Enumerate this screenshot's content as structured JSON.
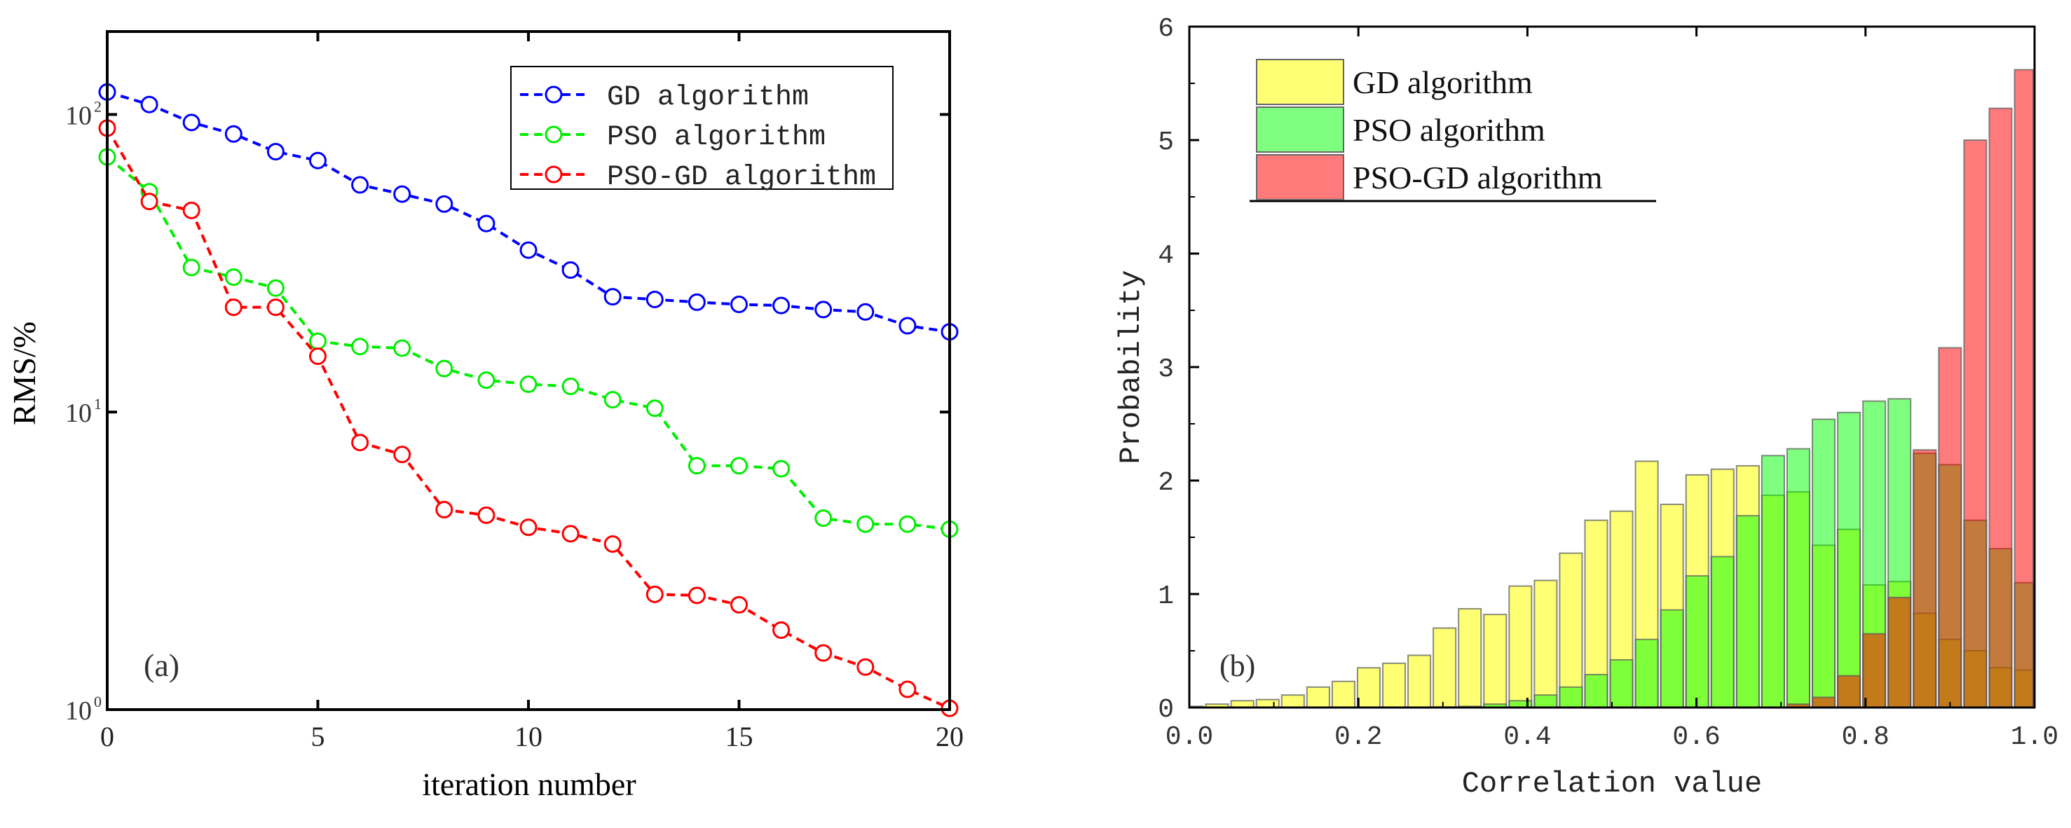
{
  "chart_data": [
    {
      "type": "line",
      "panel_label": "(a)",
      "xlabel": "iteration number",
      "ylabel": "RMS/%",
      "yscale": "log",
      "xlim": [
        0,
        20
      ],
      "ylim": [
        1,
        190
      ],
      "x_ticks": [
        "0",
        "5",
        "10",
        "15",
        "20"
      ],
      "x_tick_values": [
        0,
        5,
        10,
        15,
        20
      ],
      "y_ticks": [
        {
          "base": "10",
          "exp": "0",
          "value": 1
        },
        {
          "base": "10",
          "exp": "1",
          "value": 10
        },
        {
          "base": "10",
          "exp": "2",
          "value": 100
        }
      ],
      "legend_position": "top-right",
      "x": [
        0,
        1,
        2,
        3,
        4,
        5,
        6,
        7,
        8,
        9,
        10,
        11,
        12,
        13,
        14,
        15,
        16,
        17,
        18,
        19,
        20
      ],
      "series": [
        {
          "name": "GD algorithm",
          "color": "#0000ff",
          "values": [
            119,
            108,
            94,
            86,
            75,
            70,
            58,
            54,
            50,
            43,
            35,
            30,
            24.4,
            23.9,
            23.4,
            23,
            22.8,
            22.1,
            21.7,
            19.5,
            18.6
          ]
        },
        {
          "name": "PSO algorithm",
          "color": "#00ee00",
          "values": [
            72,
            55,
            30.6,
            28.4,
            26.1,
            17.3,
            16.6,
            16.4,
            14,
            12.8,
            12.4,
            12.2,
            11,
            10.3,
            6.6,
            6.6,
            6.45,
            4.4,
            4.2,
            4.2,
            4.04
          ]
        },
        {
          "name": "PSO-GD algorithm",
          "color": "#ff0000",
          "values": [
            90,
            51,
            47.6,
            22.5,
            22.5,
            15.4,
            7.9,
            7.2,
            4.7,
            4.5,
            4.1,
            3.9,
            3.6,
            2.44,
            2.42,
            2.25,
            1.85,
            1.55,
            1.39,
            1.17,
            1.01
          ]
        }
      ]
    },
    {
      "type": "bar",
      "subtype": "overlapping-histogram",
      "panel_label": "(b)",
      "xlabel": "Correlation value",
      "ylabel": "Probability",
      "xlim": [
        0,
        1
      ],
      "ylim": [
        0,
        6
      ],
      "x_ticks": [
        "0.0",
        "0.2",
        "0.4",
        "0.6",
        "0.8",
        "1.0"
      ],
      "x_tick_values": [
        0,
        0.2,
        0.4,
        0.6,
        0.8,
        1.0
      ],
      "y_ticks": [
        "0",
        "1",
        "2",
        "3",
        "4",
        "5",
        "6"
      ],
      "y_tick_values": [
        0,
        1,
        2,
        3,
        4,
        5,
        6
      ],
      "legend_position": "top-left",
      "bin_start": -0.012,
      "bin_width": 0.0299,
      "series": [
        {
          "name": "GD algorithm",
          "color": "#ffff00",
          "values": [
            0.01,
            0.03,
            0.06,
            0.07,
            0.11,
            0.18,
            0.23,
            0.35,
            0.39,
            0.46,
            0.7,
            0.87,
            0.82,
            1.07,
            1.12,
            1.36,
            1.65,
            1.73,
            2.17,
            1.79,
            2.05,
            2.1,
            2.13,
            1.87,
            1.9,
            1.43,
            1.57,
            1.08,
            1.11,
            0.83,
            0.6,
            0.5,
            0.35,
            0.33
          ]
        },
        {
          "name": "PSO algorithm",
          "color": "#00ff00",
          "values": [
            0,
            0,
            0,
            0,
            0,
            0,
            0,
            0,
            0,
            0,
            0.005,
            0.01,
            0.03,
            0.06,
            0.11,
            0.18,
            0.29,
            0.42,
            0.6,
            0.86,
            1.16,
            1.33,
            1.69,
            2.22,
            2.28,
            2.54,
            2.6,
            2.7,
            2.72,
            2.24,
            2.14,
            1.65,
            1.4,
            1.1
          ]
        },
        {
          "name": "PSO-GD algorithm",
          "color": "#ff0000",
          "values": [
            0,
            0,
            0,
            0,
            0,
            0,
            0,
            0,
            0,
            0,
            0,
            0,
            0,
            0,
            0,
            0,
            0,
            0,
            0,
            0,
            0,
            0,
            0,
            0,
            0.03,
            0.09,
            0.28,
            0.65,
            0.97,
            2.27,
            3.17,
            5.0,
            5.28,
            5.62
          ]
        }
      ]
    }
  ]
}
